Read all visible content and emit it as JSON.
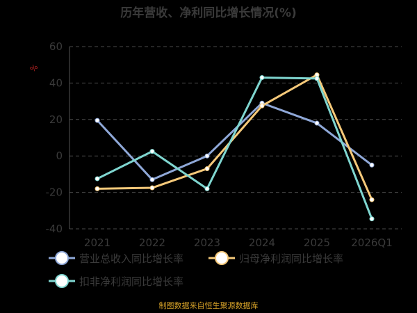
{
  "chart_data": {
    "type": "line",
    "title": "历年营收、净利同比增长情况(%)",
    "unit_label": "%",
    "categories": [
      "2021",
      "2022",
      "2023",
      "2024",
      "2025",
      "2026Q1"
    ],
    "ylim": [
      -40,
      60
    ],
    "yticks": [
      -40,
      -20,
      0,
      20,
      40,
      60
    ],
    "grid": true,
    "legend_position": "bottom",
    "series": [
      {
        "name": "营业总收入同比增长率",
        "color": "#8fa8d8",
        "values": [
          19.5,
          -13.0,
          0.0,
          29.0,
          18.0,
          -5.0
        ]
      },
      {
        "name": "归母净利润同比增长率",
        "color": "#f5c97a",
        "values": [
          -18.0,
          -17.5,
          -7.0,
          27.5,
          44.5,
          -24.0
        ]
      },
      {
        "name": "扣非净利润同比增长率",
        "color": "#7fd6d0",
        "values": [
          -12.5,
          2.5,
          -18.0,
          43.0,
          42.5,
          -34.5
        ]
      }
    ],
    "source": "制图数据来自恒生聚源数据库"
  }
}
